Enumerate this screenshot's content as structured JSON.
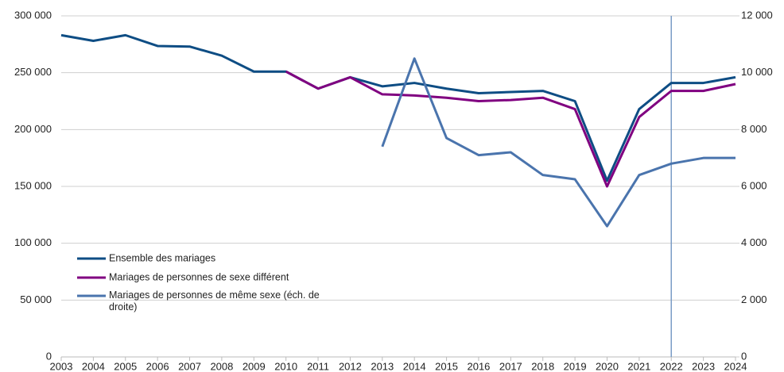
{
  "chart_data": {
    "type": "line",
    "categories": [
      "2003",
      "2004",
      "2005",
      "2006",
      "2007",
      "2008",
      "2009",
      "2010",
      "2011",
      "2012",
      "2013",
      "2014",
      "2015",
      "2016",
      "2017",
      "2018",
      "2019",
      "2020",
      "2021",
      "2022",
      "2023",
      "2024"
    ],
    "series": [
      {
        "name": "Ensemble des mariages",
        "color": "#0e4d84",
        "values": [
          283000,
          278000,
          283000,
          273500,
          273000,
          265000,
          251000,
          251000,
          236000,
          246000,
          238000,
          241000,
          236000,
          232000,
          233000,
          234000,
          225000,
          155000,
          218000,
          241000,
          241000,
          246000
        ]
      },
      {
        "name": "Mariages de personnes de sexe différent",
        "color": "#800080",
        "values": [
          null,
          null,
          null,
          null,
          null,
          null,
          null,
          251000,
          236000,
          246000,
          231000,
          230000,
          228000,
          225000,
          226000,
          228000,
          218000,
          150000,
          211000,
          234000,
          234000,
          240000
        ]
      },
      {
        "name": "Mariages de personnes de même sexe (éch. de droite)",
        "color": "#4a74ad",
        "axis": "y2",
        "values": [
          null,
          null,
          null,
          null,
          null,
          null,
          null,
          null,
          null,
          null,
          7400,
          10500,
          7700,
          7100,
          7200,
          6400,
          6250,
          4600,
          6400,
          6800,
          7000,
          7000
        ]
      }
    ],
    "ylim": [
      0,
      300000
    ],
    "yticks": [
      {
        "value": 0,
        "label": "0"
      },
      {
        "value": 50000,
        "label": "50 000"
      },
      {
        "value": 100000,
        "label": "100 000"
      },
      {
        "value": 150000,
        "label": "150 000"
      },
      {
        "value": 200000,
        "label": "200 000"
      },
      {
        "value": 250000,
        "label": "250 000"
      },
      {
        "value": 300000,
        "label": "300 000"
      }
    ],
    "y2lim": [
      0,
      12000
    ],
    "y2ticks": [
      {
        "value": 0,
        "label": "0"
      },
      {
        "value": 2000,
        "label": "2 000"
      },
      {
        "value": 4000,
        "label": "4 000"
      },
      {
        "value": 6000,
        "label": "6 000"
      },
      {
        "value": 8000,
        "label": "8 000"
      },
      {
        "value": 10000,
        "label": "10 000"
      },
      {
        "value": 12000,
        "label": "12 000"
      }
    ],
    "grid": true,
    "legend": "lower-left",
    "vline": "2022"
  }
}
